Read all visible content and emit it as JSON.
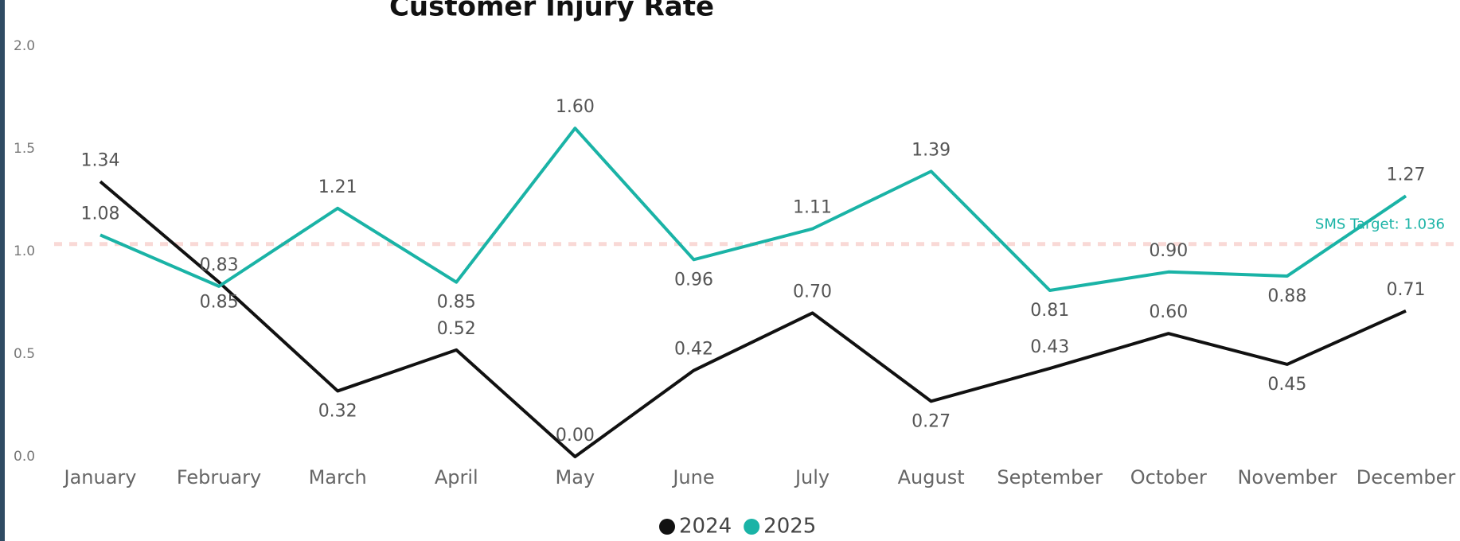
{
  "chart_data": {
    "type": "line",
    "title": "Customer Injury Rate",
    "categories": [
      "January",
      "February",
      "March",
      "April",
      "May",
      "June",
      "July",
      "August",
      "September",
      "October",
      "November",
      "December"
    ],
    "series": [
      {
        "name": "2024",
        "color": "#111111",
        "values": [
          1.34,
          0.85,
          0.32,
          0.52,
          0.0,
          0.42,
          0.7,
          0.27,
          0.43,
          0.6,
          0.45,
          0.71
        ],
        "value_labels": [
          "1.34",
          "0.85",
          "0.32",
          "0.52",
          "0.00",
          "0.42",
          "0.70",
          "0.27",
          "0.43",
          "0.60",
          "0.45",
          "0.71"
        ]
      },
      {
        "name": "2025",
        "color": "#1ab3a6",
        "values": [
          1.08,
          0.83,
          1.21,
          0.85,
          1.6,
          0.96,
          1.11,
          1.39,
          0.81,
          0.9,
          0.88,
          1.27
        ],
        "value_labels": [
          "1.08",
          "0.83",
          "1.21",
          "0.85",
          "1.60",
          "0.96",
          "1.11",
          "1.39",
          "0.81",
          "0.90",
          "0.88",
          "1.27"
        ]
      }
    ],
    "ylim": [
      0,
      2
    ],
    "yticks": [
      {
        "value": 0,
        "label": "0.0"
      },
      {
        "value": 0.5,
        "label": "0.5"
      },
      {
        "value": 1,
        "label": "1.0"
      },
      {
        "value": 1.5,
        "label": "1.5"
      },
      {
        "value": 2,
        "label": "2.0"
      }
    ],
    "target": {
      "value": 1.036,
      "label": "SMS Target: 1.036",
      "color": "#f9d9d6",
      "label_color": "#1ab3a6"
    },
    "legend": "bottom"
  }
}
